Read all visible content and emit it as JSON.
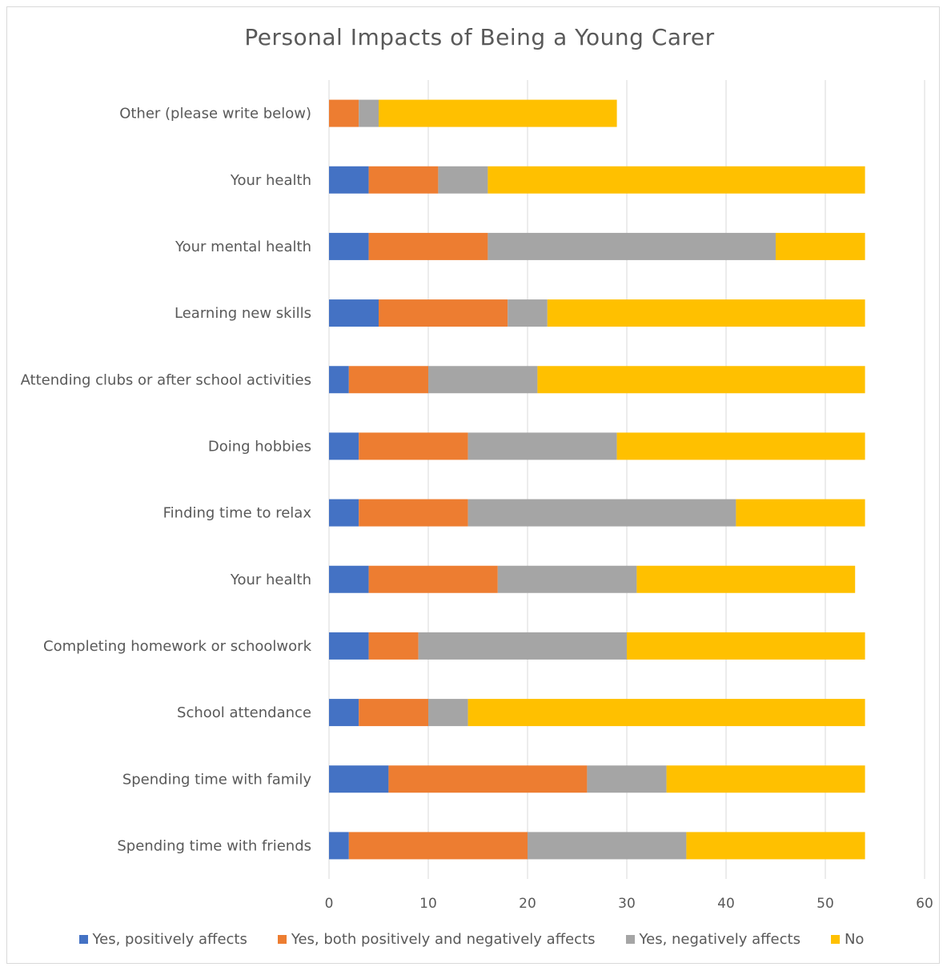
{
  "chart_data": {
    "type": "bar",
    "orientation": "horizontal",
    "stacked": true,
    "title": "Personal Impacts of Being a Young Carer",
    "categories": [
      "Spending time with friends",
      "Spending time with family",
      "School attendance",
      "Completing homework or schoolwork",
      "Your health",
      "Finding time to relax",
      "Doing hobbies",
      "Attending clubs or after school activities",
      "Learning new skills",
      "Your mental health",
      "Your health",
      "Other (please write below)"
    ],
    "series": [
      {
        "name": "Yes, positively affects",
        "color": "#4472c4",
        "values": [
          2,
          6,
          3,
          4,
          4,
          3,
          3,
          2,
          5,
          4,
          4,
          0
        ]
      },
      {
        "name": "Yes, both positively and negatively affects",
        "color": "#ed7d31",
        "values": [
          18,
          20,
          7,
          5,
          13,
          11,
          11,
          8,
          13,
          12,
          7,
          3
        ]
      },
      {
        "name": "Yes, negatively affects",
        "color": "#a5a5a5",
        "values": [
          16,
          8,
          4,
          21,
          14,
          27,
          15,
          11,
          4,
          29,
          5,
          2
        ]
      },
      {
        "name": "No",
        "color": "#ffc000",
        "values": [
          18,
          20,
          40,
          24,
          22,
          13,
          25,
          33,
          32,
          9,
          38,
          24
        ]
      }
    ],
    "x_ticks": [
      0,
      10,
      20,
      30,
      40,
      50,
      60
    ],
    "xlim": [
      0,
      60
    ],
    "grid": "vertical",
    "legend_position": "bottom"
  }
}
